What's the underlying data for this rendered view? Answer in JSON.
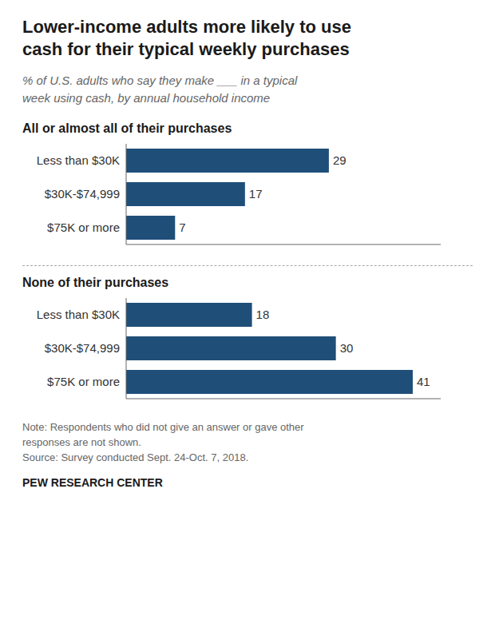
{
  "chart_data": {
    "type": "bar",
    "orientation": "horizontal",
    "title": "Lower-income adults more likely to use\ncash for their typical weekly purchases",
    "subtitle": "% of U.S. adults who say they make ___ in a typical\nweek using cash, by annual household income",
    "sections": [
      "All or almost all of their purchases",
      "None of their purchases"
    ],
    "categories": [
      "Less than $30K",
      "$30K-$74,999",
      "$75K or more",
      "Less than $30K",
      "$30K-$74,999",
      "$75K or more"
    ],
    "values": [
      29,
      17,
      7,
      18,
      30,
      41
    ],
    "color": "#1f4e79",
    "xlim": [
      0,
      45
    ],
    "data_labels": true,
    "tick_labels": "y",
    "grid": false,
    "notes": [
      "Note: Respondents who did not give an answer or gave other",
      "responses are not shown.",
      "Source: Survey conducted Sept. 24-Oct. 7, 2018."
    ],
    "source": "PEW RESEARCH CENTER"
  }
}
